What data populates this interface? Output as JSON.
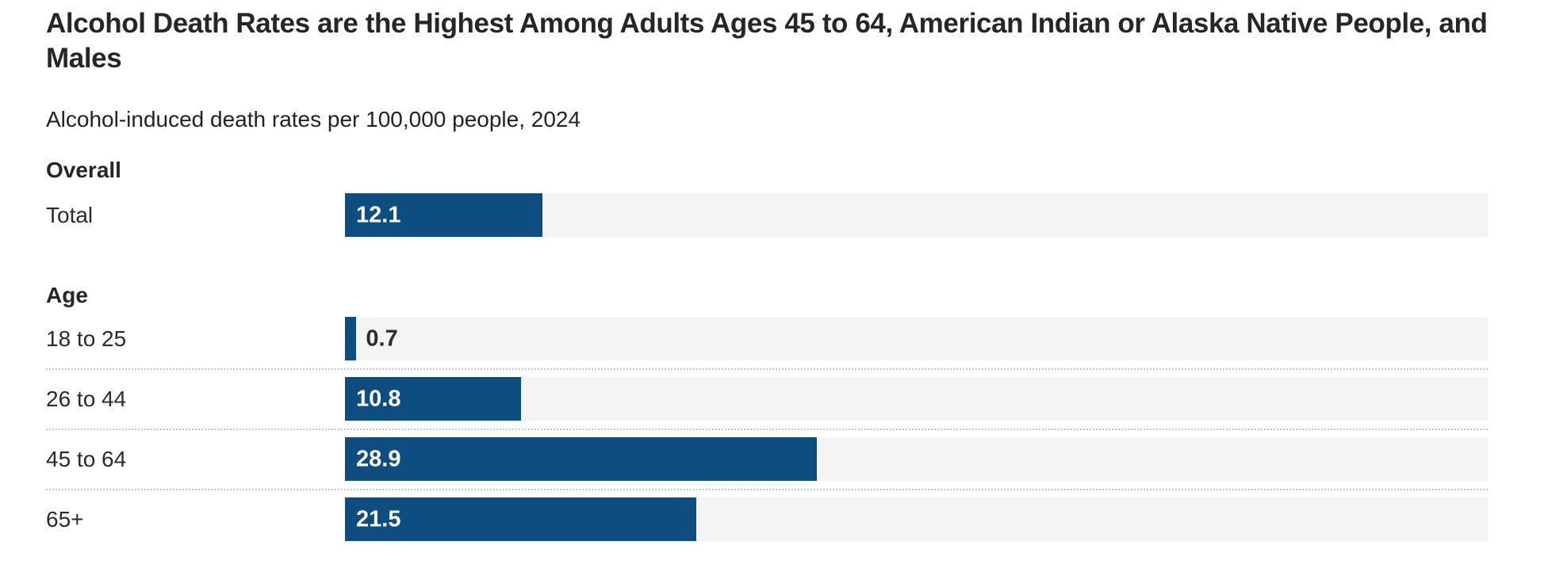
{
  "header": {
    "title": "Alcohol Death Rates are the Highest Among Adults Ages 45 to 64, American Indian or Alaska Native People, and Males",
    "subtitle": "Alcohol-induced death rates per 100,000 people, 2024"
  },
  "chart_data": {
    "type": "bar",
    "orientation": "horizontal",
    "title": "Alcohol Death Rates are the Highest Among Adults Ages 45 to 64, American Indian or Alaska Native People, and Males",
    "subtitle": "Alcohol-induced death rates per 100,000 people, 2024",
    "unit": "deaths per 100,000 people",
    "year": "2024",
    "xlim": [
      0,
      70
    ],
    "grid": false,
    "legend": "none",
    "axis_ticks": "none",
    "colors": {
      "bar": "#0d4d80",
      "track": "#f4f4f4",
      "value_label_inside": "#ffffff",
      "value_label_outside": "#2b2b2b"
    },
    "sections": [
      {
        "label": "Overall",
        "rows": [
          {
            "label": "Total",
            "value": 12.1,
            "value_label": "12.1"
          }
        ]
      },
      {
        "label": "Age",
        "rows": [
          {
            "label": "18 to 25",
            "value": 0.7,
            "value_label": "0.7"
          },
          {
            "label": "26 to 44",
            "value": 10.8,
            "value_label": "10.8"
          },
          {
            "label": "45 to 64",
            "value": 28.9,
            "value_label": "28.9"
          },
          {
            "label": "65+",
            "value": 21.5,
            "value_label": "21.5"
          }
        ]
      }
    ]
  }
}
